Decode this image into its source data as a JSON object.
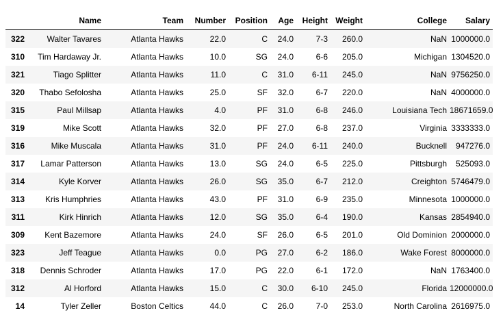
{
  "table": {
    "columns": [
      "",
      "Name",
      "Team",
      "Number",
      "Position",
      "Age",
      "Height",
      "Weight",
      "College",
      "Salary"
    ],
    "rows": [
      [
        "322",
        "Walter Tavares",
        "Atlanta Hawks",
        "22.0",
        "C",
        "24.0",
        "7-3",
        "260.0",
        "NaN",
        "1000000.0"
      ],
      [
        "310",
        "Tim Hardaway Jr.",
        "Atlanta Hawks",
        "10.0",
        "SG",
        "24.0",
        "6-6",
        "205.0",
        "Michigan",
        "1304520.0"
      ],
      [
        "321",
        "Tiago Splitter",
        "Atlanta Hawks",
        "11.0",
        "C",
        "31.0",
        "6-11",
        "245.0",
        "NaN",
        "9756250.0"
      ],
      [
        "320",
        "Thabo Sefolosha",
        "Atlanta Hawks",
        "25.0",
        "SF",
        "32.0",
        "6-7",
        "220.0",
        "NaN",
        "4000000.0"
      ],
      [
        "315",
        "Paul Millsap",
        "Atlanta Hawks",
        "4.0",
        "PF",
        "31.0",
        "6-8",
        "246.0",
        "Louisiana Tech",
        "18671659.0"
      ],
      [
        "319",
        "Mike Scott",
        "Atlanta Hawks",
        "32.0",
        "PF",
        "27.0",
        "6-8",
        "237.0",
        "Virginia",
        "3333333.0"
      ],
      [
        "316",
        "Mike Muscala",
        "Atlanta Hawks",
        "31.0",
        "PF",
        "24.0",
        "6-11",
        "240.0",
        "Bucknell",
        "947276.0"
      ],
      [
        "317",
        "Lamar Patterson",
        "Atlanta Hawks",
        "13.0",
        "SG",
        "24.0",
        "6-5",
        "225.0",
        "Pittsburgh",
        "525093.0"
      ],
      [
        "314",
        "Kyle Korver",
        "Atlanta Hawks",
        "26.0",
        "SG",
        "35.0",
        "6-7",
        "212.0",
        "Creighton",
        "5746479.0"
      ],
      [
        "313",
        "Kris Humphries",
        "Atlanta Hawks",
        "43.0",
        "PF",
        "31.0",
        "6-9",
        "235.0",
        "Minnesota",
        "1000000.0"
      ],
      [
        "311",
        "Kirk Hinrich",
        "Atlanta Hawks",
        "12.0",
        "SG",
        "35.0",
        "6-4",
        "190.0",
        "Kansas",
        "2854940.0"
      ],
      [
        "309",
        "Kent Bazemore",
        "Atlanta Hawks",
        "24.0",
        "SF",
        "26.0",
        "6-5",
        "201.0",
        "Old Dominion",
        "2000000.0"
      ],
      [
        "323",
        "Jeff Teague",
        "Atlanta Hawks",
        "0.0",
        "PG",
        "27.0",
        "6-2",
        "186.0",
        "Wake Forest",
        "8000000.0"
      ],
      [
        "318",
        "Dennis Schroder",
        "Atlanta Hawks",
        "17.0",
        "PG",
        "22.0",
        "6-1",
        "172.0",
        "NaN",
        "1763400.0"
      ],
      [
        "312",
        "Al Horford",
        "Atlanta Hawks",
        "15.0",
        "C",
        "30.0",
        "6-10",
        "245.0",
        "Florida",
        "12000000.0"
      ],
      [
        "14",
        "Tyler Zeller",
        "Boston Celtics",
        "44.0",
        "C",
        "26.0",
        "7-0",
        "253.0",
        "North Carolina",
        "2616975.0"
      ]
    ]
  }
}
